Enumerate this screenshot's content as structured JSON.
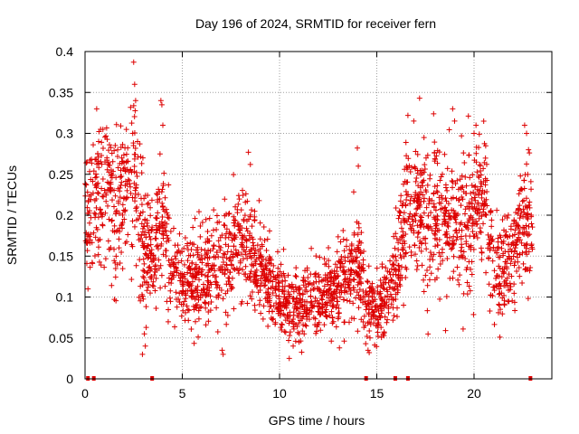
{
  "chart_data": {
    "type": "scatter",
    "title": "Day 196 of 2024, SRMTID for receiver fern",
    "xlabel": "GPS time / hours",
    "ylabel": "SRMTID / TECUs",
    "xlim": [
      0,
      24
    ],
    "ylim": [
      0,
      0.4
    ],
    "xticks": [
      0,
      5,
      10,
      15,
      20
    ],
    "xtick_labels": [
      "0",
      "5",
      "10",
      "15",
      "20"
    ],
    "yticks": [
      0,
      0.05,
      0.1,
      0.15,
      0.2,
      0.25,
      0.3,
      0.35,
      0.4
    ],
    "ytick_labels": [
      "0",
      "0.05",
      "0.1",
      "0.15",
      "0.2",
      "0.25",
      "0.3",
      "0.35",
      "0.4"
    ],
    "grid": true,
    "marker": "+",
    "color": "#dd0000",
    "series": [
      {
        "name": "SRMTID",
        "envelope": {
          "x": [
            0.0,
            0.5,
            1.0,
            1.5,
            2.0,
            2.5,
            3.0,
            3.5,
            4.0,
            4.5,
            5.0,
            6.0,
            7.0,
            8.0,
            9.0,
            10.0,
            10.5,
            11.0,
            12.0,
            13.0,
            14.0,
            14.5,
            15.0,
            15.5,
            16.0,
            16.5,
            17.0,
            17.5,
            18.0,
            19.0,
            20.0,
            20.5,
            21.0,
            21.5,
            22.0,
            22.5,
            23.0
          ],
          "y": [
            0.19,
            0.22,
            0.25,
            0.2,
            0.23,
            0.25,
            0.17,
            0.15,
            0.2,
            0.13,
            0.12,
            0.13,
            0.14,
            0.17,
            0.13,
            0.1,
            0.08,
            0.09,
            0.1,
            0.11,
            0.14,
            0.1,
            0.08,
            0.1,
            0.12,
            0.2,
            0.22,
            0.2,
            0.2,
            0.18,
            0.2,
            0.24,
            0.13,
            0.13,
            0.15,
            0.19,
            0.19
          ],
          "spread": [
            0.06,
            0.06,
            0.06,
            0.06,
            0.07,
            0.07,
            0.06,
            0.05,
            0.05,
            0.04,
            0.04,
            0.04,
            0.04,
            0.05,
            0.04,
            0.03,
            0.025,
            0.025,
            0.03,
            0.035,
            0.04,
            0.035,
            0.03,
            0.03,
            0.04,
            0.05,
            0.06,
            0.06,
            0.06,
            0.06,
            0.06,
            0.05,
            0.04,
            0.04,
            0.04,
            0.05,
            0.05
          ],
          "n": 2600,
          "seed": 196
        },
        "points": [
          {
            "x": 2.5,
            "y": 0.387
          },
          {
            "x": 2.55,
            "y": 0.36
          },
          {
            "x": 2.6,
            "y": 0.34
          },
          {
            "x": 3.9,
            "y": 0.34
          },
          {
            "x": 3.95,
            "y": 0.335
          },
          {
            "x": 4.0,
            "y": 0.31
          },
          {
            "x": 2.95,
            "y": 0.03
          },
          {
            "x": 3.1,
            "y": 0.04
          },
          {
            "x": 3.05,
            "y": 0.055
          },
          {
            "x": 0.8,
            "y": 0.305
          },
          {
            "x": 0.7,
            "y": 0.29
          },
          {
            "x": 0.65,
            "y": 0.275
          },
          {
            "x": 2.45,
            "y": 0.3
          },
          {
            "x": 2.7,
            "y": 0.29
          },
          {
            "x": 7.1,
            "y": 0.03
          },
          {
            "x": 7.05,
            "y": 0.035
          },
          {
            "x": 8.4,
            "y": 0.277
          },
          {
            "x": 8.5,
            "y": 0.262
          },
          {
            "x": 14.0,
            "y": 0.282
          },
          {
            "x": 14.05,
            "y": 0.26
          },
          {
            "x": 14.55,
            "y": 0.035
          },
          {
            "x": 14.65,
            "y": 0.05
          },
          {
            "x": 17.2,
            "y": 0.343
          },
          {
            "x": 16.6,
            "y": 0.322
          },
          {
            "x": 16.9,
            "y": 0.315
          },
          {
            "x": 18.9,
            "y": 0.33
          },
          {
            "x": 19.0,
            "y": 0.315
          },
          {
            "x": 20.0,
            "y": 0.3
          },
          {
            "x": 20.1,
            "y": 0.31
          },
          {
            "x": 22.6,
            "y": 0.31
          },
          {
            "x": 22.7,
            "y": 0.3
          },
          {
            "x": 22.8,
            "y": 0.28
          },
          {
            "x": 21.3,
            "y": 0.09
          },
          {
            "x": 21.35,
            "y": 0.085
          },
          {
            "x": 10.7,
            "y": 0.04
          },
          {
            "x": 11.0,
            "y": 0.045
          },
          {
            "x": 0.1,
            "y": 0.265
          },
          {
            "x": 0.15,
            "y": 0.11
          }
        ]
      }
    ],
    "zero_markers": [
      0.15,
      0.45,
      3.45,
      14.45,
      15.95,
      16.6,
      22.9
    ]
  }
}
